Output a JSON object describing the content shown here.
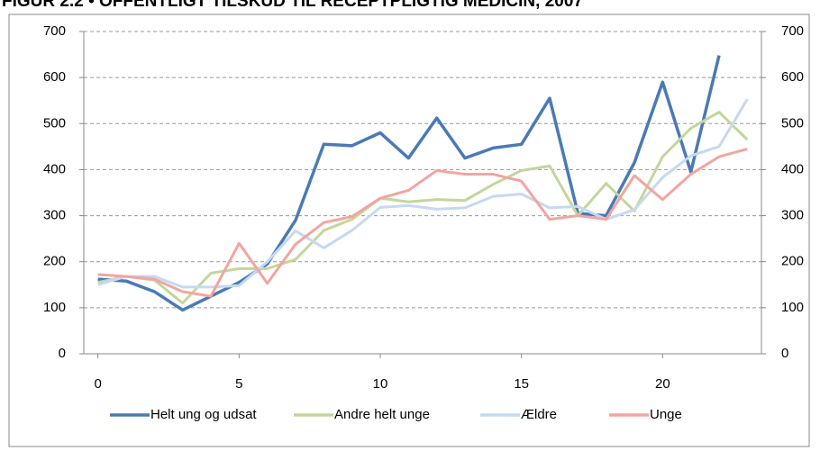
{
  "chart_data": {
    "type": "line",
    "title": "FIGUR 2.2 • OFFENTLIGT TILSKUD TIL RECEPTPLIGTIG MEDICIN, 2007",
    "x": [
      0,
      1,
      2,
      3,
      4,
      5,
      6,
      7,
      8,
      9,
      10,
      11,
      12,
      13,
      14,
      15,
      16,
      17,
      18,
      19,
      20,
      21,
      22,
      23
    ],
    "series": [
      {
        "name": "Helt ung og udsat",
        "color": "#4a7ab5",
        "values": [
          162,
          158,
          135,
          95,
          125,
          155,
          195,
          290,
          455,
          452,
          480,
          425,
          512,
          425,
          447,
          455,
          555,
          305,
          300,
          415,
          590,
          395,
          648,
          null
        ]
      },
      {
        "name": "Andre helt unge",
        "color": "#c3d69b",
        "values": [
          155,
          168,
          160,
          110,
          175,
          185,
          185,
          205,
          268,
          292,
          338,
          330,
          335,
          333,
          368,
          398,
          408,
          300,
          370,
          310,
          428,
          490,
          525,
          465
        ]
      },
      {
        "name": "Ældre",
        "color": "#c6d9f1",
        "values": [
          150,
          168,
          168,
          145,
          145,
          148,
          200,
          267,
          230,
          268,
          318,
          322,
          314,
          317,
          342,
          347,
          317,
          320,
          292,
          313,
          383,
          430,
          450,
          553
        ]
      },
      {
        "name": "Unge",
        "color": "#f2a5a0",
        "values": [
          172,
          168,
          162,
          135,
          125,
          240,
          153,
          238,
          285,
          298,
          338,
          355,
          398,
          390,
          390,
          375,
          292,
          300,
          292,
          387,
          335,
          390,
          428,
          445
        ]
      }
    ],
    "xlim": [
      -0.5,
      23.5
    ],
    "xticks": [
      0,
      5,
      10,
      15,
      20
    ],
    "ylim": [
      0,
      700
    ],
    "yticks": [
      0,
      100,
      200,
      300,
      400,
      500,
      600,
      700
    ],
    "y2lim": [
      0,
      700
    ],
    "y2ticks": [
      0,
      100,
      200,
      300,
      400,
      500,
      600,
      700
    ],
    "grid": true,
    "legend": "bottom"
  }
}
